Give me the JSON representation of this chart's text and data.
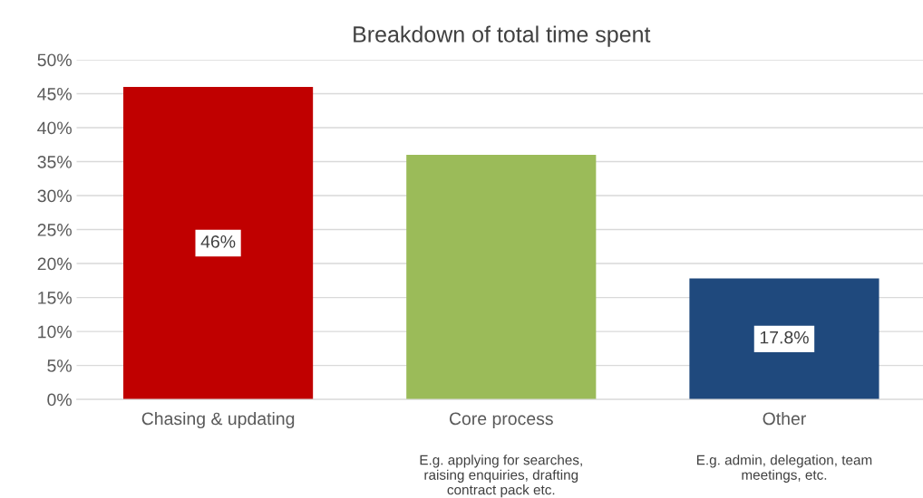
{
  "chart_data": {
    "type": "bar",
    "title": "Breakdown of total time spent",
    "categories": [
      "Chasing & updating",
      "Core process",
      "Other"
    ],
    "values": [
      46,
      36,
      17.8
    ],
    "colors": [
      "#c00000",
      "#9bbb59",
      "#1f497d"
    ],
    "value_labels": [
      "46%",
      null,
      "17.8%"
    ],
    "ylim": [
      0,
      50
    ],
    "yticks": [
      {
        "value": 0,
        "label": "0%"
      },
      {
        "value": 5,
        "label": "5%"
      },
      {
        "value": 10,
        "label": "10%"
      },
      {
        "value": 15,
        "label": "15%"
      },
      {
        "value": 20,
        "label": "20%"
      },
      {
        "value": 25,
        "label": "25%"
      },
      {
        "value": 30,
        "label": "30%"
      },
      {
        "value": 35,
        "label": "35%"
      },
      {
        "value": 40,
        "label": "40%"
      },
      {
        "value": 45,
        "label": "45%"
      },
      {
        "value": 50,
        "label": "50%"
      }
    ],
    "grid": "y",
    "annotations": [
      "E.g. applying for searches,\nraising enquiries, drafting\ncontract pack etc.",
      "E.g. admin, delegation, team\nmeetings, etc."
    ]
  }
}
